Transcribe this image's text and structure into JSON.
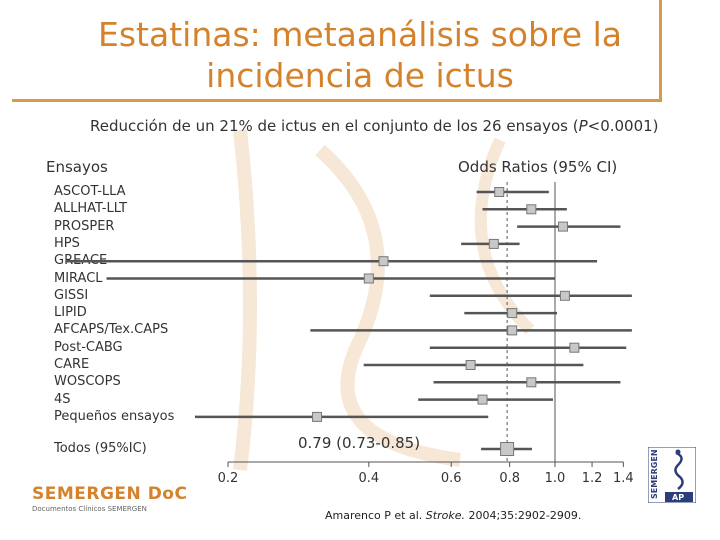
{
  "title_line1": "Estatinas: metaanálisis sobre la",
  "title_line2": "incidencia de ictus",
  "subtitle_pre": "Reducción de un 21% de ictus en el conjunto de los 26 ensayos (",
  "subtitle_p": "P",
  "subtitle_post": "<0.0001)",
  "col_trials": "Ensayos",
  "col_or": "Odds Ratios (95% CI)",
  "total_label": "Todos (95%IC)",
  "total_value": "0.79 (0.73-0.85)",
  "logo_main": "SEMERGEN DoC",
  "logo_sub": "Documentos Clínicos SEMERGEN",
  "badge_text": "SEMERGEN",
  "badge_ap": "AP",
  "citation_pre": "Amarenco P et al. ",
  "citation_journal": "Stroke.",
  "citation_post": " 2004;35:2902-2909.",
  "colors": {
    "title": "#d4822c",
    "line": "#d79b45",
    "marker_fill": "#c8c8c8",
    "marker_stroke": "#777777",
    "ci": "#555555"
  },
  "chart_data": {
    "type": "forest",
    "x_ticks": [
      "0.2",
      "0.4",
      "0.6",
      "0.8",
      "1.0",
      "1.2",
      "1.4"
    ],
    "x_ticks_num": [
      0.2,
      0.4,
      0.6,
      0.8,
      1.0,
      1.2,
      1.4
    ],
    "studies": [
      {
        "name": "ASCOT-LLA",
        "or": 0.76,
        "lo": 0.68,
        "hi": 0.97
      },
      {
        "name": "ALLHAT-LLT",
        "or": 0.89,
        "lo": 0.7,
        "hi": 1.06
      },
      {
        "name": "PROSPER",
        "or": 1.04,
        "lo": 0.83,
        "hi": 1.38
      },
      {
        "name": "HPS",
        "or": 0.74,
        "lo": 0.63,
        "hi": 0.84
      },
      {
        "name": "GREACE",
        "or": 0.43,
        "lo": 0.09,
        "hi": 1.23
      },
      {
        "name": "MIRACL",
        "or": 0.4,
        "lo": 0.11,
        "hi": 1.0
      },
      {
        "name": "GISSI",
        "or": 1.05,
        "lo": 0.54,
        "hi": 1.46
      },
      {
        "name": "LIPID",
        "or": 0.81,
        "lo": 0.64,
        "hi": 1.01
      },
      {
        "name": "AFCAPS/Tex.CAPS",
        "or": 0.81,
        "lo": 0.3,
        "hi": 1.46
      },
      {
        "name": "Post-CABG",
        "or": 1.1,
        "lo": 0.54,
        "hi": 1.42
      },
      {
        "name": "CARE",
        "or": 0.66,
        "lo": 0.39,
        "hi": 1.15
      },
      {
        "name": "WOSCOPS",
        "or": 0.89,
        "lo": 0.55,
        "hi": 1.38
      },
      {
        "name": "4S",
        "or": 0.7,
        "lo": 0.51,
        "hi": 0.99
      },
      {
        "name": "Pequeños ensayos",
        "or": 0.31,
        "lo": 0.17,
        "hi": 0.72
      }
    ],
    "overall": {
      "or": 0.79,
      "lo": 0.73,
      "hi": 0.85
    }
  }
}
